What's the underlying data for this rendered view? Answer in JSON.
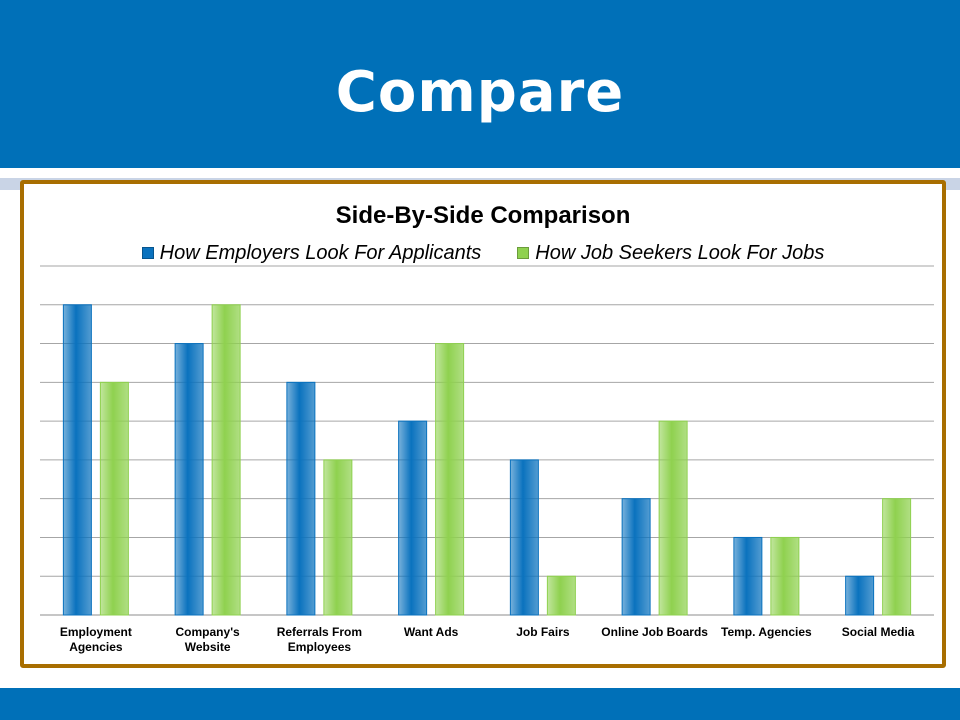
{
  "slide": {
    "title": "Compare"
  },
  "colors": {
    "band": "#0070b8",
    "frame": "#a86e00",
    "series1": "#0a72be",
    "series2": "#8fd14f"
  },
  "chart_data": {
    "type": "bar",
    "title": "Side-By-Side Comparison",
    "xlabel": "",
    "ylabel": "",
    "categories": [
      "Employment Agencies",
      "Company's Website",
      "Referrals From Employees",
      "Want Ads",
      "Job Fairs",
      "Online Job Boards",
      "Temp. Agencies",
      "Social Media"
    ],
    "series": [
      {
        "name": "How Employers Look For Applicants",
        "values": [
          8,
          7,
          6,
          5,
          4,
          3,
          2,
          1
        ]
      },
      {
        "name": "How Job Seekers Look For Jobs",
        "values": [
          6,
          8,
          4,
          7,
          1,
          5,
          2,
          3
        ]
      }
    ],
    "ylim": [
      0,
      9
    ],
    "grid": true,
    "legend_position": "top"
  }
}
